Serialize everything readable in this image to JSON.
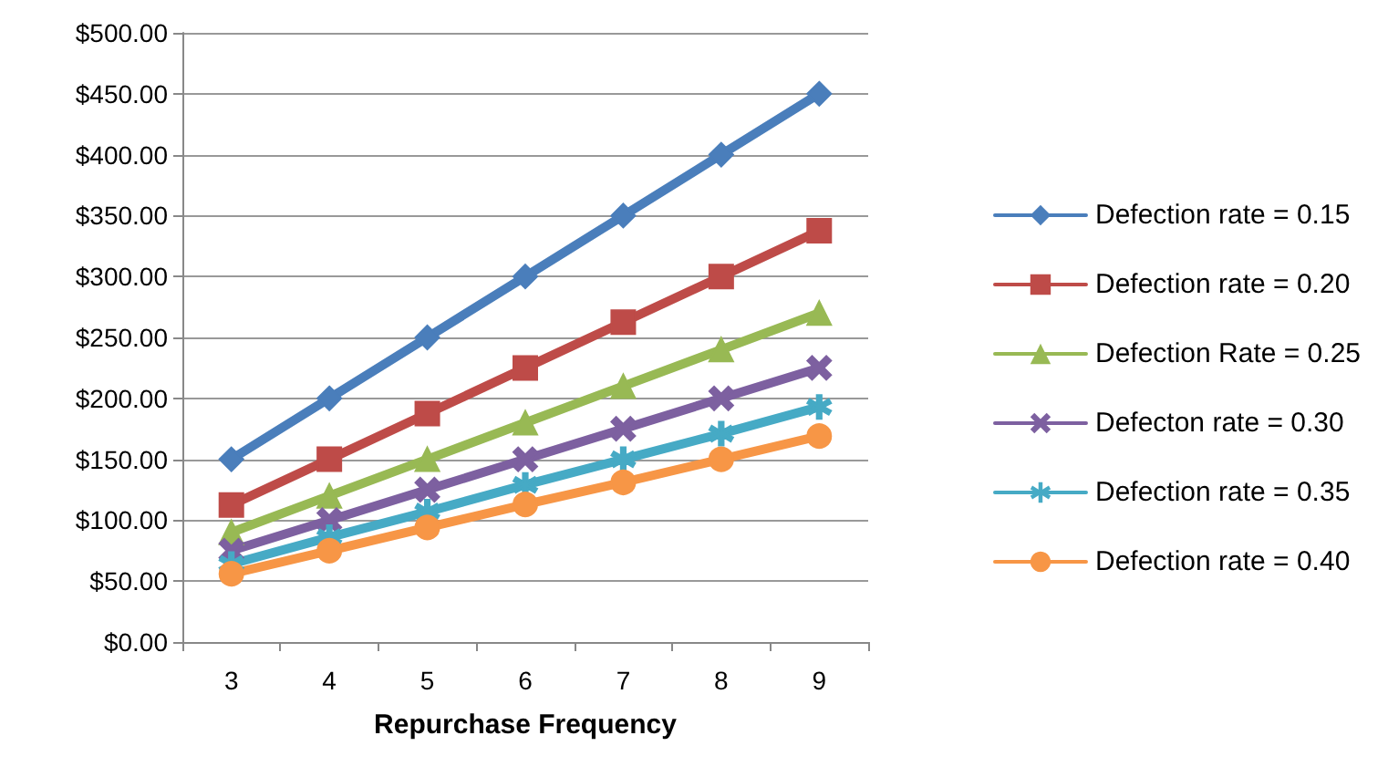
{
  "chart_data": {
    "type": "line",
    "xlabel": "Repurchase Frequency",
    "categories": [
      "3",
      "4",
      "5",
      "6",
      "7",
      "8",
      "9"
    ],
    "ylim": [
      0,
      500
    ],
    "yticks": [
      {
        "value": 0,
        "label": "$0.00"
      },
      {
        "value": 50,
        "label": "$50.00"
      },
      {
        "value": 100,
        "label": "$100.00"
      },
      {
        "value": 150,
        "label": "$150.00"
      },
      {
        "value": 200,
        "label": "$200.00"
      },
      {
        "value": 250,
        "label": "$250.00"
      },
      {
        "value": 300,
        "label": "$300.00"
      },
      {
        "value": 350,
        "label": "$350.00"
      },
      {
        "value": 400,
        "label": "$400.00"
      },
      {
        "value": 450,
        "label": "$450.00"
      },
      {
        "value": 500,
        "label": "$500.00"
      }
    ],
    "grid": "y",
    "legend": "right",
    "line_style": "solid",
    "series": [
      {
        "name": "Defection rate = 0.15",
        "color": "#4a7ebb",
        "marker": "diamond",
        "values": [
          150,
          200,
          250,
          300,
          350,
          400,
          450
        ]
      },
      {
        "name": "Defection rate = 0.20",
        "color": "#be4b48",
        "marker": "square",
        "values": [
          112.5,
          150,
          187.5,
          225,
          262.5,
          300,
          337.5
        ]
      },
      {
        "name": "Defection Rate = 0.25",
        "color": "#98b954",
        "marker": "triangle",
        "values": [
          90,
          120,
          150,
          180,
          210,
          240,
          270
        ]
      },
      {
        "name": "Defecton rate = 0.30",
        "color": "#7d60a0",
        "marker": "cross",
        "values": [
          75,
          100,
          125,
          150,
          175,
          200,
          225
        ]
      },
      {
        "name": "Defection rate = 0.35",
        "color": "#46aac5",
        "marker": "star",
        "values": [
          64,
          86,
          107,
          129,
          150,
          171,
          193
        ]
      },
      {
        "name": "Defection rate = 0.40",
        "color": "#f79646",
        "marker": "circle",
        "values": [
          56,
          75,
          94,
          113,
          131,
          150,
          169
        ]
      }
    ]
  }
}
